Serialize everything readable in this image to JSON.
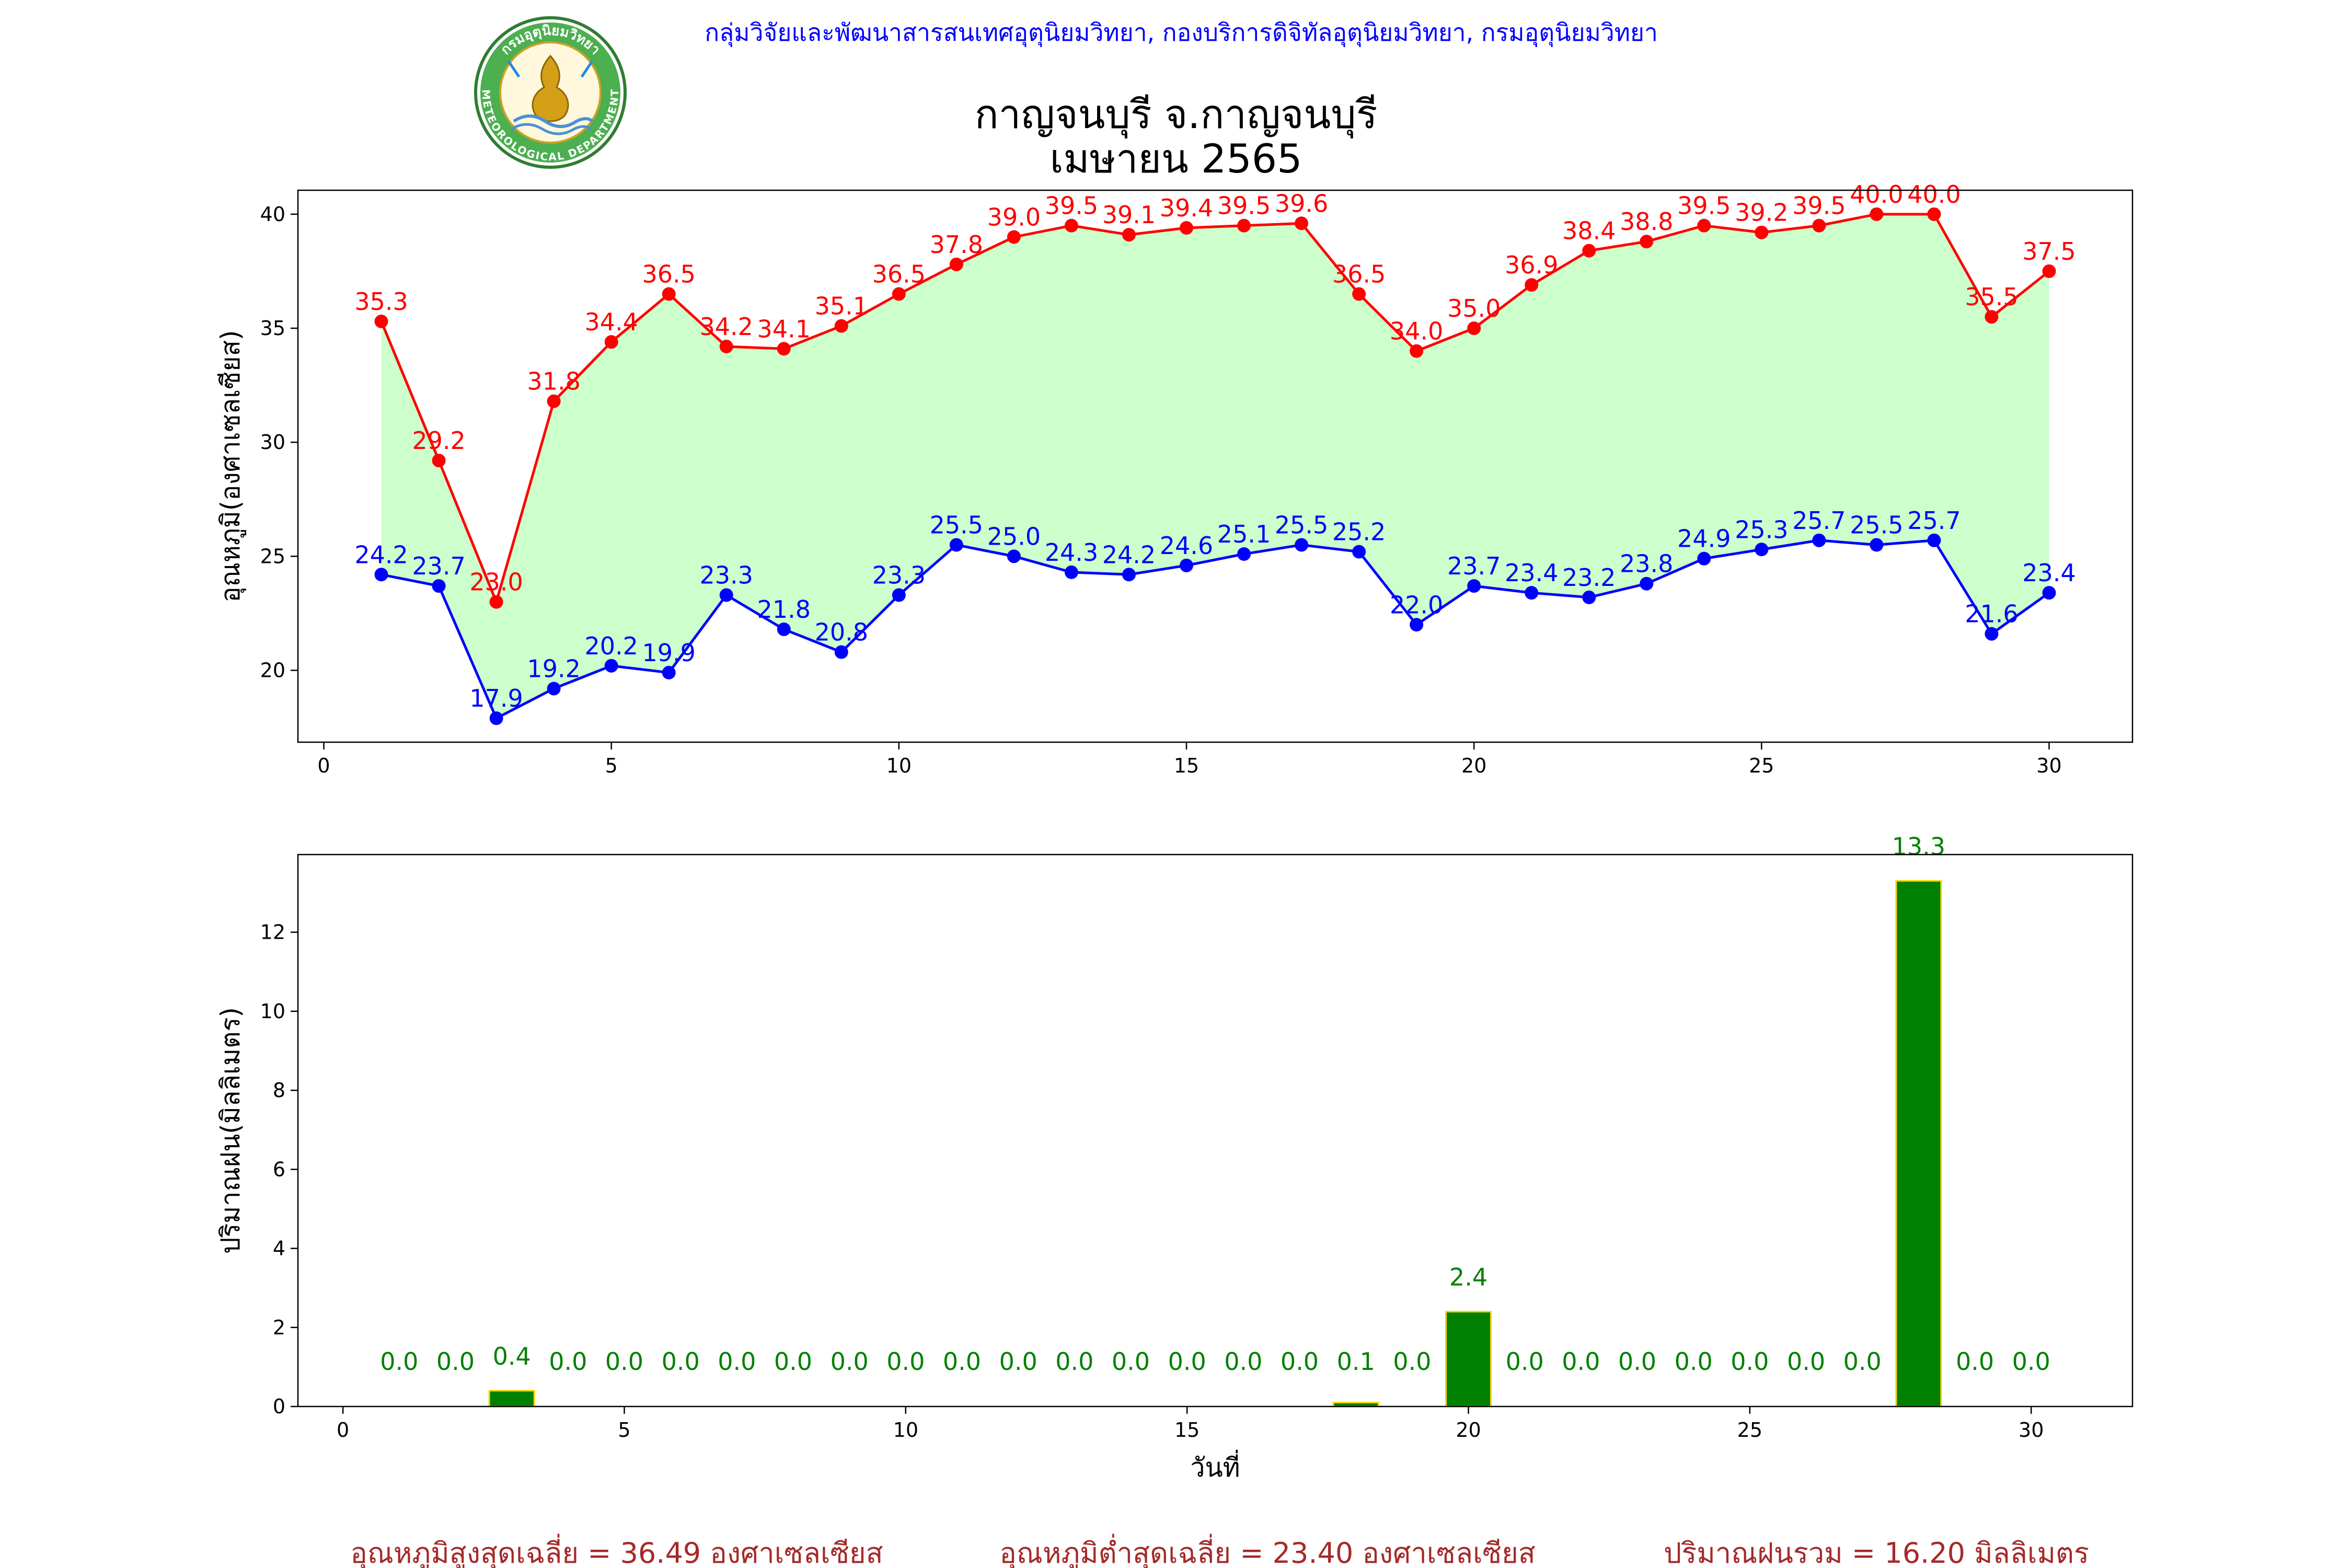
{
  "header": {
    "credit": "กลุ่มวิจัยและพัฒนาสารสนเทศอุตุนิยมวิทยา, กองบริการดิจิทัลอุตุนิยมวิทยา, กรมอุตุนิยมวิทยา",
    "title_line1": "กาญจนบุรี จ.กาญจนบุรี",
    "title_line2": "เมษายน 2565",
    "logo": {
      "icon": "meteorological-department-seal",
      "top_text": "กรมอุตุนิยมวิทยา",
      "bottom_text": "METEOROLOGICAL DEPARTMENT"
    }
  },
  "colors": {
    "max_line": "#ff0000",
    "min_line": "#0000ff",
    "fill_between": "#ccffcc",
    "rain_bar": "#008000",
    "rain_edge": "#ffd700",
    "rain_label": "#008000",
    "footer_text": "#a52a2a",
    "credit_text": "#0000ff"
  },
  "chart_data": [
    {
      "type": "line",
      "title": "",
      "xlabel": "",
      "ylabel": "อุณหภูมิ(องศาเซลเซียส)",
      "x": [
        1,
        2,
        3,
        4,
        5,
        6,
        7,
        8,
        9,
        10,
        11,
        12,
        13,
        14,
        15,
        16,
        17,
        18,
        19,
        20,
        21,
        22,
        23,
        24,
        25,
        26,
        27,
        28,
        29,
        30
      ],
      "series": [
        {
          "values": [
            35.3,
            29.2,
            23.0,
            31.8,
            34.4,
            36.5,
            34.2,
            34.1,
            35.1,
            36.5,
            37.8,
            39.0,
            39.5,
            39.1,
            39.4,
            39.5,
            39.6,
            36.5,
            34.0,
            35.0,
            36.9,
            38.4,
            38.8,
            39.5,
            39.2,
            39.5,
            40.0,
            40.0,
            35.5,
            37.5
          ],
          "color": "#ff0000"
        },
        {
          "values": [
            24.2,
            23.7,
            17.9,
            19.2,
            20.2,
            19.9,
            23.3,
            21.8,
            20.8,
            23.3,
            25.5,
            25.0,
            24.3,
            24.2,
            24.6,
            25.1,
            25.5,
            25.2,
            22.0,
            23.7,
            23.4,
            23.2,
            23.8,
            24.9,
            25.3,
            25.7,
            25.5,
            25.7,
            21.6,
            23.4
          ],
          "color": "#0000ff"
        }
      ],
      "fill_between": true,
      "xlim": [
        -0.45,
        31.45
      ],
      "ylim": [
        16.85,
        41.05
      ],
      "xticks": [
        0,
        5,
        10,
        15,
        20,
        25,
        30
      ],
      "yticks": [
        20,
        25,
        30,
        35,
        40
      ],
      "grid": false,
      "legend": "none"
    },
    {
      "type": "bar",
      "title": "",
      "xlabel": "วันที่",
      "ylabel": "ปริมาณฝน(มิลลิเมตร)",
      "x": [
        1,
        2,
        3,
        4,
        5,
        6,
        7,
        8,
        9,
        10,
        11,
        12,
        13,
        14,
        15,
        16,
        17,
        18,
        19,
        20,
        21,
        22,
        23,
        24,
        25,
        26,
        27,
        28,
        29,
        30
      ],
      "values": [
        0.0,
        0.0,
        0.4,
        0.0,
        0.0,
        0.0,
        0.0,
        0.0,
        0.0,
        0.0,
        0.0,
        0.0,
        0.0,
        0.0,
        0.0,
        0.0,
        0.0,
        0.1,
        0.0,
        2.4,
        0.0,
        0.0,
        0.0,
        0.0,
        0.0,
        0.0,
        0.0,
        13.3,
        0.0,
        0.0
      ],
      "xlim": [
        -0.8,
        31.8
      ],
      "ylim": [
        0,
        13.965
      ],
      "xticks": [
        0,
        5,
        10,
        15,
        20,
        25,
        30
      ],
      "yticks": [
        0,
        2,
        4,
        6,
        8,
        10,
        12
      ],
      "grid": false,
      "legend": "none"
    }
  ],
  "footer": {
    "avg_max": "อุณหภูมิสูงสุดเฉลี่ย = 36.49 องศาเซลเซียส",
    "avg_min": "อุณหภูมิต่ำสุดเฉลี่ย = 23.40 องศาเซลเซียส",
    "total_rain": "ปริมาณฝนรวม = 16.20 มิลลิเมตร"
  }
}
